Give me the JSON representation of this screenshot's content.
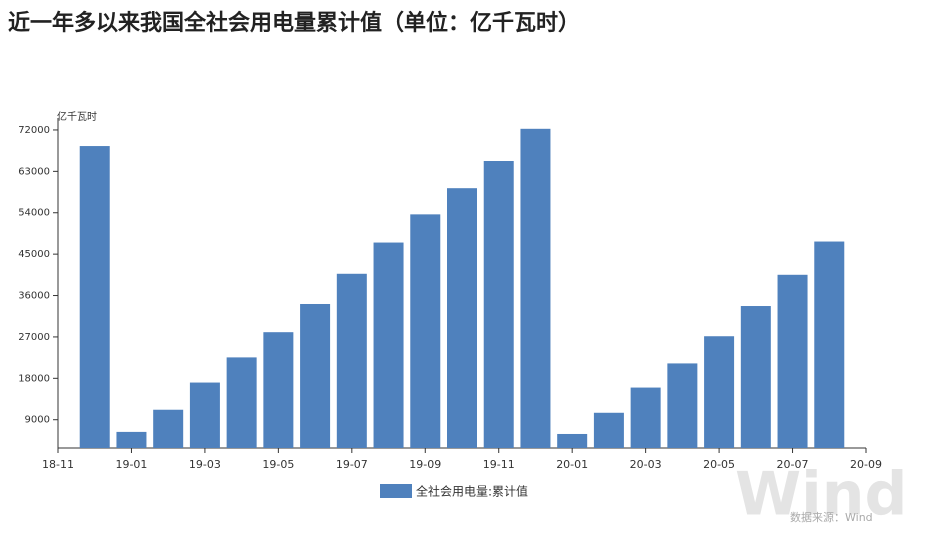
{
  "chart_data": {
    "type": "bar",
    "title": "近一年多以来我国全社会用电量累计值（单位：亿千瓦时）",
    "y_label": "亿千瓦时",
    "categories": [
      "18-11",
      null,
      "19-01",
      null,
      "19-03",
      null,
      "19-05",
      null,
      "19-07",
      null,
      "19-09",
      null,
      "19-11",
      null,
      "20-01",
      null,
      "20-03",
      null,
      "20-05",
      null,
      "20-07",
      null,
      "20-09"
    ],
    "series": [
      {
        "name": "全社会用电量:累计值",
        "color": "#4f81bd",
        "values": [
          null,
          68500,
          6350,
          11170,
          17080,
          22550,
          28030,
          34160,
          40730,
          47520,
          53650,
          59340,
          65250,
          72250,
          5900,
          10510,
          15990,
          21240,
          27150,
          33720,
          40510,
          47740,
          null
        ]
      }
    ],
    "ylim": [
      2850,
      74600
    ],
    "yticks": [
      9000,
      18000,
      27000,
      36000,
      45000,
      54000,
      63000,
      72000
    ],
    "watermark": "Wind",
    "source": "数据来源：Wind"
  }
}
